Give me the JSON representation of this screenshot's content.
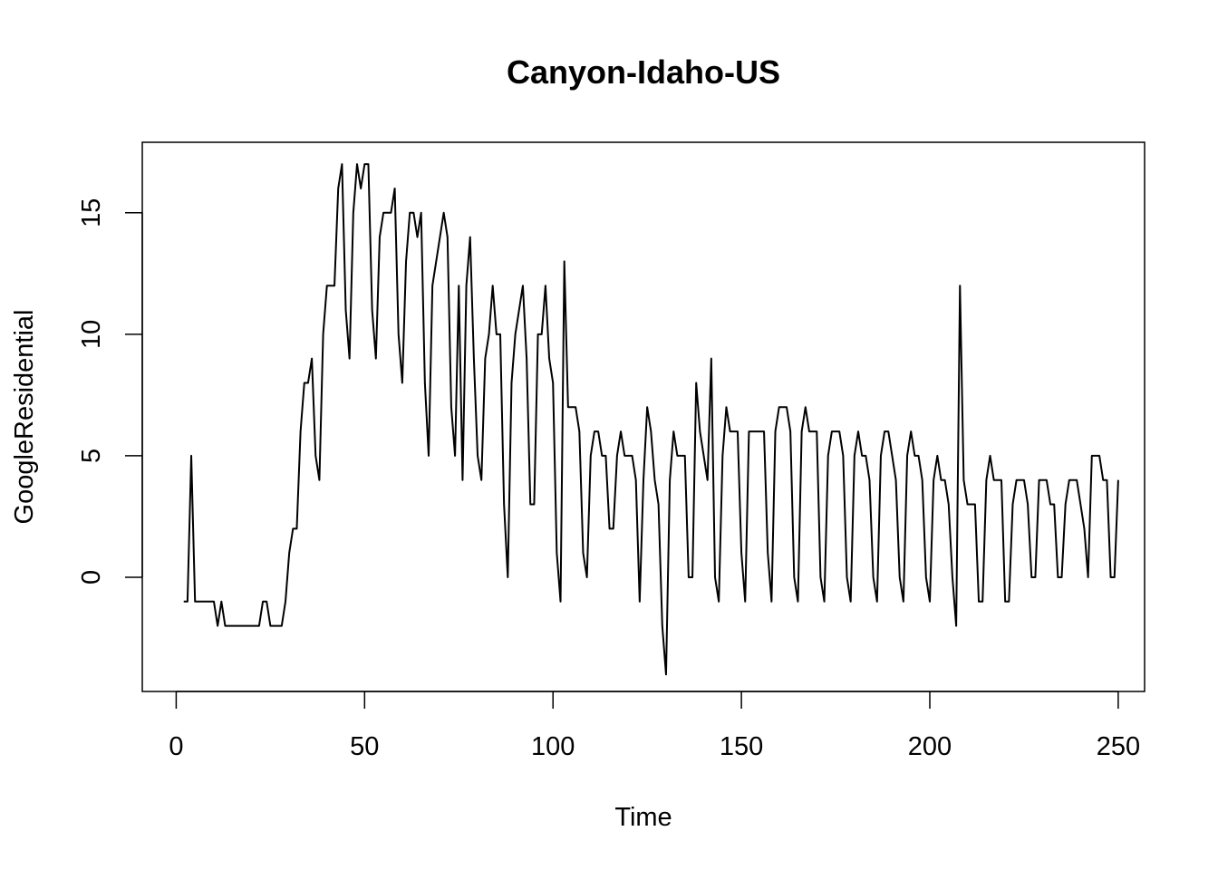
{
  "chart_data": {
    "type": "line",
    "title": "Canyon-Idaho-US",
    "xlabel": "Time",
    "ylabel": "GoogleResidential",
    "xlim": [
      -9,
      257
    ],
    "ylim": [
      -4.7,
      17.9
    ],
    "xticks": [
      0,
      50,
      100,
      150,
      200,
      250
    ],
    "yticks": [
      0,
      5,
      10,
      15
    ],
    "grid": false,
    "series": [
      {
        "x_start": 2,
        "x_step": 1,
        "values": [
          -1,
          -1,
          5,
          -1,
          -1,
          -1,
          -1,
          -1,
          -1,
          -2,
          -1,
          -2,
          -2,
          -2,
          -2,
          -2,
          -2,
          -2,
          -2,
          -2,
          -2,
          -1,
          -1,
          -2,
          -2,
          -2,
          -2,
          -1,
          1,
          2,
          2,
          6,
          8,
          8,
          9,
          5,
          4,
          10,
          12,
          12,
          12,
          16,
          17,
          11,
          9,
          15,
          17,
          16,
          17,
          17,
          11,
          9,
          14,
          15,
          15,
          15,
          16,
          10,
          8,
          13,
          15,
          15,
          14,
          15,
          8,
          5,
          12,
          13,
          14,
          15,
          14,
          7,
          5,
          12,
          4,
          12,
          14,
          9,
          5,
          4,
          9,
          10,
          12,
          10,
          10,
          3,
          0,
          8,
          10,
          11,
          12,
          9,
          3,
          3,
          10,
          10,
          12,
          9,
          8,
          1,
          -1,
          13,
          7,
          7,
          7,
          6,
          1,
          0,
          5,
          6,
          6,
          5,
          5,
          2,
          2,
          5,
          6,
          5,
          5,
          5,
          4,
          -1,
          4,
          7,
          6,
          4,
          3,
          -2,
          -4,
          4,
          6,
          5,
          5,
          5,
          0,
          0,
          8,
          6,
          5,
          4,
          9,
          0,
          -1,
          5,
          7,
          6,
          6,
          6,
          1,
          -1,
          6,
          6,
          6,
          6,
          6,
          1,
          -1,
          6,
          7,
          7,
          7,
          6,
          0,
          -1,
          6,
          7,
          6,
          6,
          6,
          0,
          -1,
          5,
          6,
          6,
          6,
          5,
          0,
          -1,
          5,
          6,
          5,
          5,
          4,
          0,
          -1,
          5,
          6,
          6,
          5,
          4,
          0,
          -1,
          5,
          6,
          5,
          5,
          4,
          0,
          -1,
          4,
          5,
          4,
          4,
          3,
          0,
          -2,
          12,
          4,
          3,
          3,
          3,
          -1,
          -1,
          4,
          5,
          4,
          4,
          4,
          -1,
          -1,
          3,
          4,
          4,
          4,
          3,
          0,
          0,
          4,
          4,
          4,
          3,
          3,
          0,
          0,
          3,
          4,
          4,
          4,
          3,
          2,
          0,
          5,
          5,
          5,
          4,
          4,
          0,
          0,
          4
        ]
      }
    ]
  }
}
